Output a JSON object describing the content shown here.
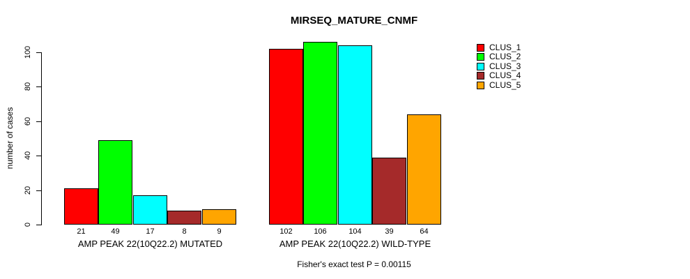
{
  "chart_data": {
    "type": "bar",
    "title": "MIRSEQ_MATURE_CNMF",
    "ylabel": "number of cases",
    "xlabel": "",
    "annotation": "Fisher's exact test P = 0.00115",
    "categories": [
      "AMP PEAK 22(10Q22.2) MUTATED",
      "AMP PEAK 22(10Q22.2) WILD-TYPE"
    ],
    "series": [
      {
        "name": "CLUS_1",
        "color": "#FF0000",
        "values": [
          21,
          102
        ]
      },
      {
        "name": "CLUS_2",
        "color": "#00FF00",
        "values": [
          49,
          106
        ]
      },
      {
        "name": "CLUS_3",
        "color": "#00FFFF",
        "values": [
          17,
          104
        ]
      },
      {
        "name": "CLUS_4",
        "color": "#A52A2A",
        "values": [
          8,
          39
        ]
      },
      {
        "name": "CLUS_5",
        "color": "#FFA500",
        "values": [
          9,
          64
        ]
      }
    ],
    "bar_value_labels": [
      [
        21,
        49,
        17,
        8,
        9
      ],
      [
        102,
        106,
        104,
        39,
        64
      ]
    ],
    "yticks": [
      0,
      20,
      40,
      60,
      80,
      100
    ],
    "ylim": [
      0,
      110
    ],
    "grid": false,
    "legend": {
      "position": "top-right",
      "entries": [
        "CLUS_1",
        "CLUS_2",
        "CLUS_3",
        "CLUS_4",
        "CLUS_5"
      ]
    },
    "colors": {
      "axis": "#000000",
      "text": "#000000",
      "background": "#FFFFFF"
    }
  }
}
